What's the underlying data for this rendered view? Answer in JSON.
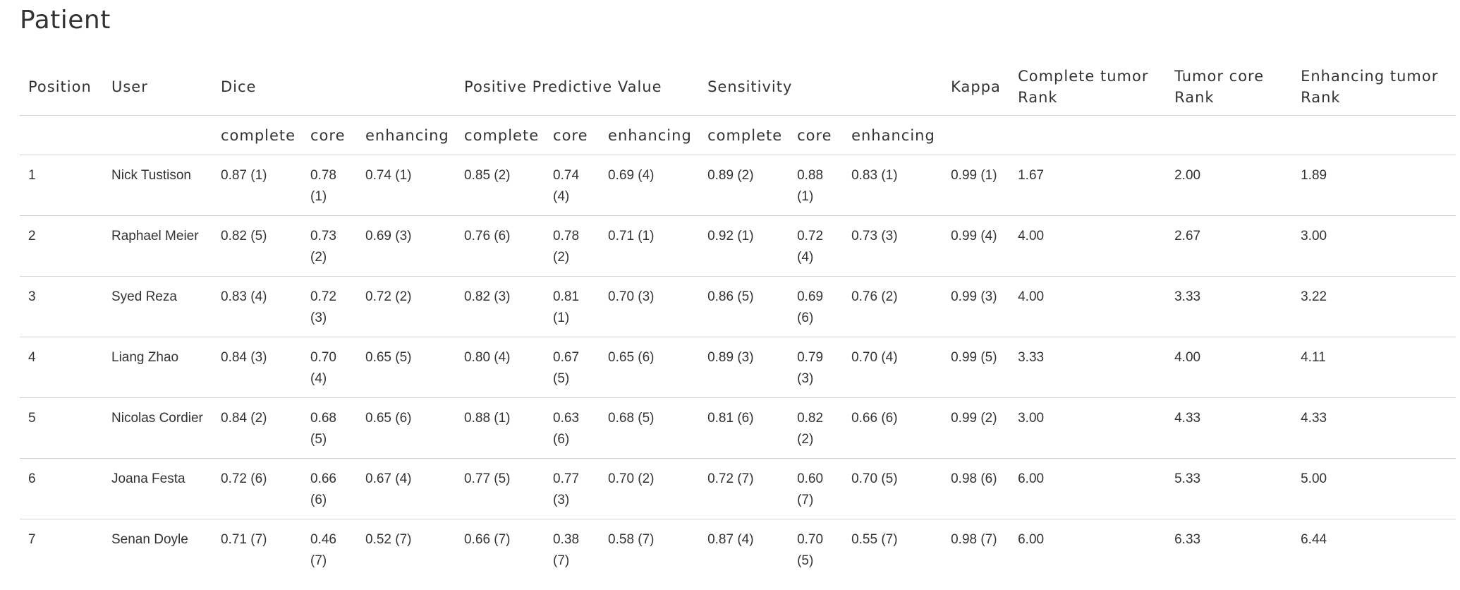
{
  "title": "Patient",
  "headers": {
    "position": "Position",
    "user": "User",
    "dice": "Dice",
    "ppv": "Positive Predictive Value",
    "sensitivity": "Sensitivity",
    "kappa": "Kappa",
    "complete_rank": "Complete tumor Rank",
    "core_rank": "Tumor core Rank",
    "enhancing_rank": "Enhancing tumor Rank",
    "sub": [
      "complete",
      "core",
      "enhancing",
      "complete",
      "core",
      "enhancing",
      "complete",
      "core",
      "enhancing"
    ]
  },
  "rows": [
    [
      "1",
      "Nick Tustison",
      "0.87 (1)",
      "0.78 (1)",
      "0.74 (1)",
      "0.85 (2)",
      "0.74 (4)",
      "0.69 (4)",
      "0.89 (2)",
      "0.88 (1)",
      "0.83 (1)",
      "0.99 (1)",
      "1.67",
      "2.00",
      "1.89"
    ],
    [
      "2",
      "Raphael Meier",
      "0.82 (5)",
      "0.73 (2)",
      "0.69 (3)",
      "0.76 (6)",
      "0.78 (2)",
      "0.71 (1)",
      "0.92 (1)",
      "0.72 (4)",
      "0.73 (3)",
      "0.99 (4)",
      "4.00",
      "2.67",
      "3.00"
    ],
    [
      "3",
      "Syed Reza",
      "0.83 (4)",
      "0.72 (3)",
      "0.72 (2)",
      "0.82 (3)",
      "0.81 (1)",
      "0.70 (3)",
      "0.86 (5)",
      "0.69 (6)",
      "0.76 (2)",
      "0.99 (3)",
      "4.00",
      "3.33",
      "3.22"
    ],
    [
      "4",
      "Liang Zhao",
      "0.84 (3)",
      "0.70 (4)",
      "0.65 (5)",
      "0.80 (4)",
      "0.67 (5)",
      "0.65 (6)",
      "0.89 (3)",
      "0.79 (3)",
      "0.70 (4)",
      "0.99 (5)",
      "3.33",
      "4.00",
      "4.11"
    ],
    [
      "5",
      "Nicolas Cordier",
      "0.84 (2)",
      "0.68 (5)",
      "0.65 (6)",
      "0.88 (1)",
      "0.63 (6)",
      "0.68 (5)",
      "0.81 (6)",
      "0.82 (2)",
      "0.66 (6)",
      "0.99 (2)",
      "3.00",
      "4.33",
      "4.33"
    ],
    [
      "6",
      "Joana Festa",
      "0.72 (6)",
      "0.66 (6)",
      "0.67 (4)",
      "0.77 (5)",
      "0.77 (3)",
      "0.70 (2)",
      "0.72 (7)",
      "0.60 (7)",
      "0.70 (5)",
      "0.98 (6)",
      "6.00",
      "5.33",
      "5.00"
    ],
    [
      "7",
      "Senan Doyle",
      "0.71 (7)",
      "0.46 (7)",
      "0.52 (7)",
      "0.66 (7)",
      "0.38 (7)",
      "0.58 (7)",
      "0.87 (4)",
      "0.70 (5)",
      "0.55 (7)",
      "0.98 (7)",
      "6.00",
      "6.33",
      "6.44"
    ]
  ]
}
